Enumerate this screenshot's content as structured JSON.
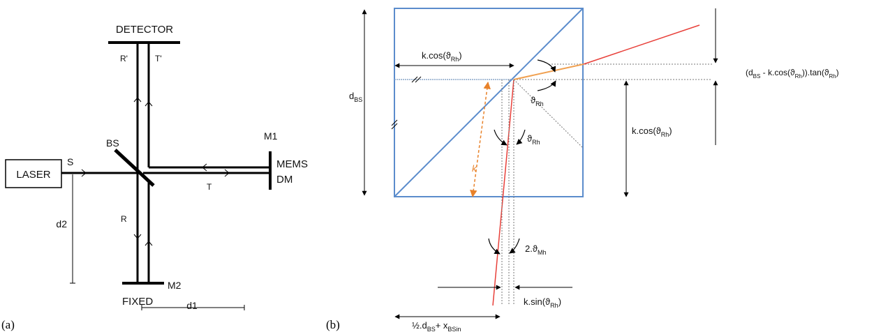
{
  "panel_a": {
    "caption": "(a)",
    "laser": "LASER",
    "source": "S",
    "beamsplitter": "BS",
    "detector": "DETECTOR",
    "m1": "M1",
    "mems_line1": "MEMS",
    "mems_line2": "DM",
    "m2": "M2",
    "fixed": "FIXED",
    "t": "T",
    "r": "R",
    "t_prime": "T'",
    "r_prime": "R'",
    "d1": "d1",
    "d2": "d2"
  },
  "panel_b": {
    "caption": "(b)",
    "k_cos_top": {
      "base": "k.cos(ϑ",
      "sub": "Rh",
      "end": ")"
    },
    "d_bs": {
      "base": "d",
      "sub": "BS"
    },
    "k": "k",
    "theta_rh_right": {
      "base": "ϑ",
      "sub": "Rh"
    },
    "theta_rh_mid": {
      "base": "ϑ",
      "sub": "Rh"
    },
    "two_theta_mh": {
      "base": "2.ϑ",
      "sub": "Mh"
    },
    "k_cos_right": {
      "base": "k.cos(ϑ",
      "sub": "Rh",
      "end": ")"
    },
    "offset_formula": {
      "p1": "(d",
      "s1": "BS",
      "p2": " - k.cos(ϑ",
      "s2": "Rh",
      "p3": ")).tan(ϑ",
      "s3": "Rh",
      "p4": ")"
    },
    "k_sin": {
      "base": "k.sin(ϑ",
      "sub": "Rh",
      "end": ")"
    },
    "half_dbs": {
      "p1": "½.d",
      "s1": "BS",
      "p2": "+ x",
      "s2": "BSin"
    }
  },
  "colors": {
    "beam_black": "#000000",
    "cube_blue": "#5b8ccc",
    "ray_red": "#e8403a",
    "ray_orange": "#f0a050",
    "dim_orange": "#e8822a",
    "dotted_gray": "#777777"
  }
}
